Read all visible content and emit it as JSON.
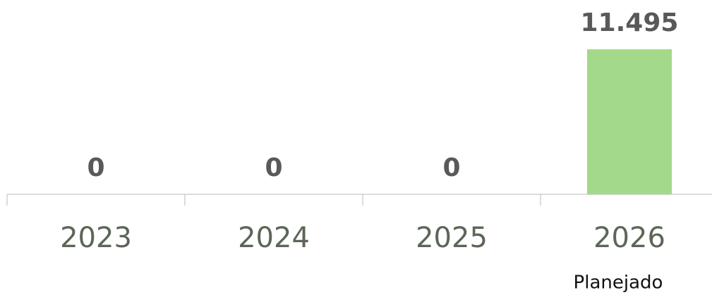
{
  "chart_data": {
    "type": "bar",
    "categories": [
      "2023",
      "2024",
      "2025",
      "2026"
    ],
    "values": [
      0,
      0,
      0,
      11495
    ],
    "value_labels": [
      "0",
      "0",
      "0",
      "11.495"
    ],
    "color": "#a3d98a",
    "annotation": "Planejado"
  }
}
